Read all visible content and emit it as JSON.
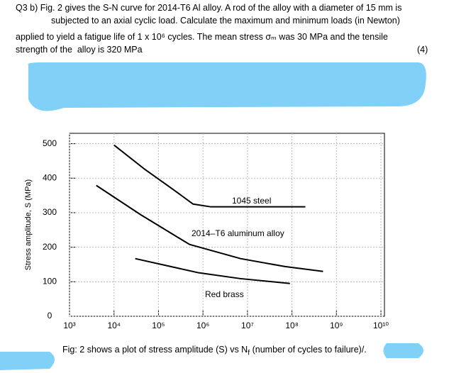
{
  "question": {
    "lines": [
      "Q3 b) Fig. 2 gives the S-N curve for 2014-T6 Al alloy. A rod of the alloy with a diameter of 15 mm is",
      "subjected to an axial cyclic load. Calculate the maximum and minimum loads (in Newton)",
      "applied to yield a fatigue life of 1 x 10⁶ cycles. The mean stress σₘ was 30 MPa and the tensile",
      "strength of the  alloy is 320 MPa"
    ],
    "marks": "(4)"
  },
  "chart_data": {
    "type": "line",
    "y_label": "Stress amplitude, S (MPa)",
    "log_x": true,
    "grid": true,
    "xlim": [
      1000,
      12000000000
    ],
    "ylim": [
      0,
      530
    ],
    "xticks": [
      {
        "value": 1000,
        "label": "10³"
      },
      {
        "value": 10000,
        "label": "10⁴"
      },
      {
        "value": 100000,
        "label": "10⁵"
      },
      {
        "value": 1000000,
        "label": "10⁶"
      },
      {
        "value": 10000000,
        "label": "10⁷"
      },
      {
        "value": 100000000,
        "label": "10⁸"
      },
      {
        "value": 1000000000,
        "label": "10⁹"
      },
      {
        "value": 10000000000,
        "label": "10¹⁰"
      }
    ],
    "yticks": [
      0,
      100,
      200,
      300,
      400,
      500
    ],
    "series": [
      {
        "name": "1045 steel",
        "color": "#000000",
        "x": [
          10000,
          50000,
          200000,
          600000,
          1500000,
          200000000
        ],
        "values": [
          496,
          425,
          370,
          325,
          317,
          317
        ]
      },
      {
        "name": "2014–T6 aluminum alloy",
        "color": "#000000",
        "x": [
          4000,
          40000,
          500000,
          7000000,
          70000000,
          500000000
        ],
        "values": [
          379,
          294,
          208,
          167,
          144,
          130
        ]
      },
      {
        "name": "Red brass",
        "color": "#000000",
        "x": [
          30000,
          800000,
          7000000,
          90000000
        ],
        "values": [
          167,
          126,
          109,
          95
        ]
      }
    ]
  },
  "caption": {
    "before": "Fig: 2 shows a plot of stress amplitude (S) vs N",
    "sub": "f",
    "after": " (number of cycles to failure)/."
  }
}
